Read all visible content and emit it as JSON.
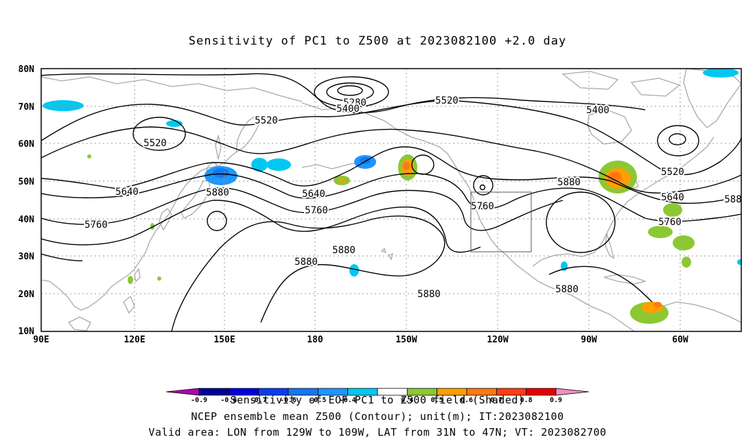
{
  "title": "Sensitivity of PC1 to Z500 at 2023082100 +2.0 day",
  "axes": {
    "lat_labels": [
      "80N",
      "70N",
      "60N",
      "50N",
      "40N",
      "30N",
      "20N",
      "10N"
    ],
    "lon_labels": [
      "90E",
      "120E",
      "150E",
      "180",
      "150W",
      "120W",
      "90W",
      "60W"
    ]
  },
  "contour_labels": [
    "5280",
    "5400",
    "5400",
    "5520",
    "5520",
    "5520",
    "5520",
    "5640",
    "5640",
    "5640",
    "5760",
    "5760",
    "5760",
    "5760",
    "5880",
    "5880",
    "5880",
    "5880",
    "5880",
    "5880",
    "588"
  ],
  "valid_area_box": {
    "lon_from": "129W",
    "lon_to": "109W",
    "lat_from": "31N",
    "lat_to": "47N"
  },
  "colorbar": {
    "labels": [
      "-0.9",
      "-0.8",
      "-0.7",
      "-0.6",
      "-0.5",
      "-0.4",
      "0.4",
      "0.5",
      "0.6",
      "0.7",
      "0.8",
      "0.9"
    ],
    "colors": [
      "#b000b0",
      "#00009a",
      "#0000dc",
      "#0a3cf0",
      "#1478f0",
      "#1e96ff",
      "#00c8f0",
      "#ffffff",
      "#8cc832",
      "#ffa000",
      "#ff7814",
      "#ff3c14",
      "#e60000",
      "#f090c0"
    ]
  },
  "captions": [
    "Sensitivity of EOF PC1 to Z500 field (Shaded)",
    "NCEP ensemble mean Z500 (Contour); unit(m); IT:2023082100",
    "Valid area: LON from 129W to 109W, LAT from 31N to 47N; VT: 2023082700"
  ]
}
